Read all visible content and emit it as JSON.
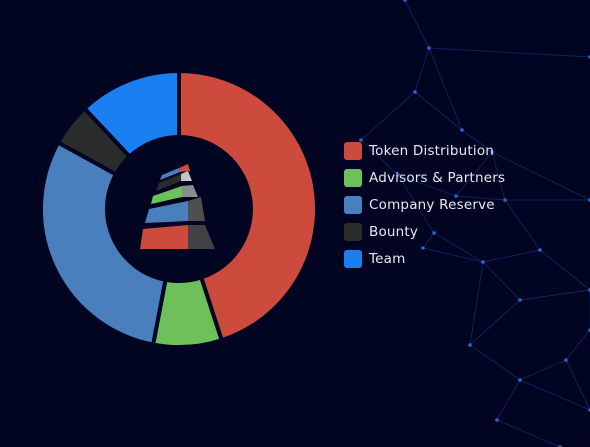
{
  "chart_data": {
    "type": "pie",
    "categories": [
      "Token Distribution",
      "Advisors & Partners",
      "Company Reserve",
      "Bounty",
      "Team"
    ],
    "values": [
      45,
      8,
      30,
      5,
      12
    ],
    "unit": "%",
    "donut": true,
    "legend_position": "right",
    "title": "",
    "colors": [
      "#cc4b3c",
      "#6dc05a",
      "#4a7fbd",
      "#2a2c2c",
      "#1a7ff0"
    ]
  },
  "theme": {
    "background": "#020522",
    "gap": "#020522",
    "network_line": "#1b3d8f",
    "network_node": "#2a63d8"
  },
  "logo": {
    "name": "tower-logo-icon"
  }
}
